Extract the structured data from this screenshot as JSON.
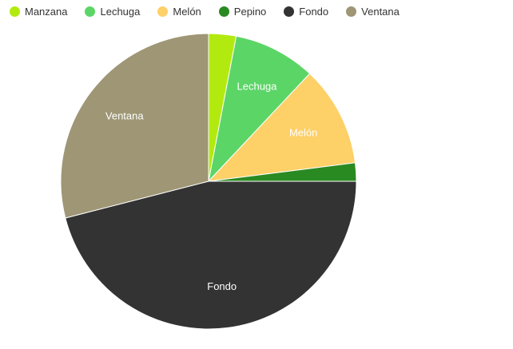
{
  "chart_data": {
    "type": "pie",
    "title": "",
    "legend_position": "top-left",
    "series": [
      {
        "name": "Manzana",
        "value": 3,
        "color": "#b2ea0f",
        "label": ""
      },
      {
        "name": "Lechuga",
        "value": 9,
        "color": "#5cd567",
        "label": "Lechuga"
      },
      {
        "name": "Melón",
        "value": 11,
        "color": "#fdd068",
        "label": "Melón"
      },
      {
        "name": "Pepino",
        "value": 2,
        "color": "#2a8a22",
        "label": ""
      },
      {
        "name": "Fondo",
        "value": 46,
        "color": "#333333",
        "label": "Fondo"
      },
      {
        "name": "Ventana",
        "value": 29,
        "color": "#9e9675",
        "label": "Ventana"
      }
    ]
  }
}
